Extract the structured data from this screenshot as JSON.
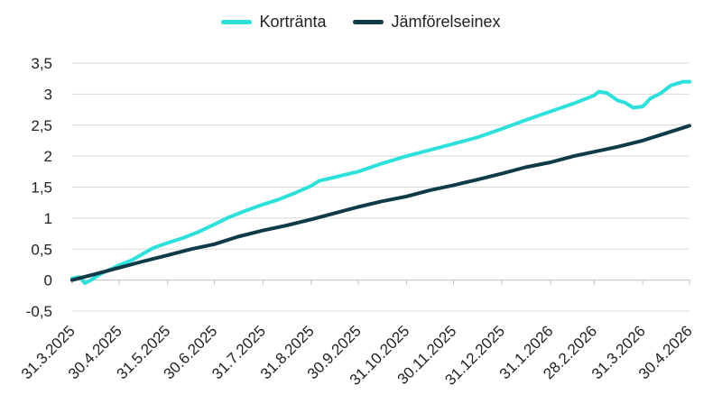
{
  "chart_data": {
    "type": "line",
    "title": "",
    "xlabel": "",
    "ylabel": "",
    "ylim": [
      -0.5,
      3.5
    ],
    "y_ticks": [
      "3,5",
      "3",
      "2,5",
      "2",
      "1,5",
      "1",
      "0,5",
      "0",
      "-0,5"
    ],
    "y_tick_values": [
      3.5,
      3,
      2.5,
      2,
      1.5,
      1,
      0.5,
      0,
      -0.5
    ],
    "x_ticks": [
      "31.3.2025",
      "30.4.2025",
      "31.5.2025",
      "30.6.2025",
      "31.7.2025",
      "31.8.2025",
      "30.9.2025",
      "31.10.2025",
      "30.11.2025",
      "31.12.2025",
      "31.1.2026",
      "28.2.2026",
      "31.3.2026",
      "30.4.2026"
    ],
    "x_tick_dates": [
      "2025-03-31",
      "2025-04-30",
      "2025-05-31",
      "2025-06-30",
      "2025-07-31",
      "2025-08-31",
      "2025-09-30",
      "2025-10-31",
      "2025-11-30",
      "2025-12-31",
      "2026-01-31",
      "2026-02-28",
      "2026-03-31",
      "2026-04-30"
    ],
    "grid": true,
    "legend_position": "top-center",
    "series": [
      {
        "name": "Korträntа",
        "color": "#2EE0DC",
        "points": [
          [
            "2025-03-31",
            0.03
          ],
          [
            "2025-04-05",
            0.05
          ],
          [
            "2025-04-08",
            -0.05
          ],
          [
            "2025-04-12",
            0.0
          ],
          [
            "2025-04-18",
            0.1
          ],
          [
            "2025-04-25",
            0.18
          ],
          [
            "2025-04-30",
            0.24
          ],
          [
            "2025-05-08",
            0.32
          ],
          [
            "2025-05-15",
            0.42
          ],
          [
            "2025-05-22",
            0.52
          ],
          [
            "2025-05-31",
            0.6
          ],
          [
            "2025-06-10",
            0.68
          ],
          [
            "2025-06-20",
            0.78
          ],
          [
            "2025-06-30",
            0.9
          ],
          [
            "2025-07-08",
            1.0
          ],
          [
            "2025-07-20",
            1.12
          ],
          [
            "2025-07-31",
            1.22
          ],
          [
            "2025-08-10",
            1.3
          ],
          [
            "2025-08-20",
            1.4
          ],
          [
            "2025-08-31",
            1.52
          ],
          [
            "2025-09-05",
            1.6
          ],
          [
            "2025-09-15",
            1.66
          ],
          [
            "2025-09-30",
            1.75
          ],
          [
            "2025-10-15",
            1.88
          ],
          [
            "2025-10-31",
            2.0
          ],
          [
            "2025-11-15",
            2.1
          ],
          [
            "2025-11-30",
            2.2
          ],
          [
            "2025-12-15",
            2.3
          ],
          [
            "2025-12-31",
            2.44
          ],
          [
            "2026-01-15",
            2.58
          ],
          [
            "2026-01-31",
            2.72
          ],
          [
            "2026-02-15",
            2.85
          ],
          [
            "2026-02-28",
            2.98
          ],
          [
            "2026-03-03",
            3.04
          ],
          [
            "2026-03-08",
            3.02
          ],
          [
            "2026-03-15",
            2.9
          ],
          [
            "2026-03-20",
            2.86
          ],
          [
            "2026-03-25",
            2.78
          ],
          [
            "2026-03-31",
            2.8
          ],
          [
            "2026-04-05",
            2.93
          ],
          [
            "2026-04-12",
            3.02
          ],
          [
            "2026-04-18",
            3.14
          ],
          [
            "2026-04-26",
            3.2
          ],
          [
            "2026-04-30",
            3.2
          ]
        ]
      },
      {
        "name": "Jämförelseinex",
        "color": "#0F3A48",
        "points": [
          [
            "2025-03-31",
            0.0
          ],
          [
            "2025-04-15",
            0.1
          ],
          [
            "2025-04-30",
            0.2
          ],
          [
            "2025-05-15",
            0.3
          ],
          [
            "2025-05-31",
            0.4
          ],
          [
            "2025-06-15",
            0.5
          ],
          [
            "2025-06-30",
            0.58
          ],
          [
            "2025-07-15",
            0.7
          ],
          [
            "2025-07-31",
            0.8
          ],
          [
            "2025-08-15",
            0.88
          ],
          [
            "2025-08-31",
            0.98
          ],
          [
            "2025-09-15",
            1.08
          ],
          [
            "2025-09-30",
            1.18
          ],
          [
            "2025-10-15",
            1.27
          ],
          [
            "2025-10-31",
            1.35
          ],
          [
            "2025-11-15",
            1.45
          ],
          [
            "2025-11-30",
            1.53
          ],
          [
            "2025-12-15",
            1.62
          ],
          [
            "2025-12-31",
            1.72
          ],
          [
            "2026-01-15",
            1.82
          ],
          [
            "2026-01-31",
            1.9
          ],
          [
            "2026-02-15",
            2.0
          ],
          [
            "2026-02-28",
            2.07
          ],
          [
            "2026-03-15",
            2.15
          ],
          [
            "2026-03-31",
            2.25
          ],
          [
            "2026-04-15",
            2.37
          ],
          [
            "2026-04-30",
            2.49
          ]
        ]
      }
    ]
  }
}
